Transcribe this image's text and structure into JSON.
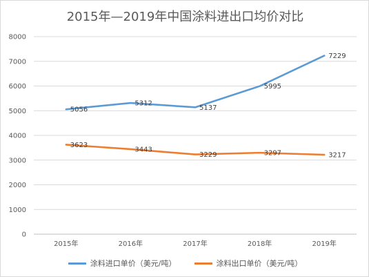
{
  "chart_data": {
    "type": "line",
    "title": "2015年—2019年中国涂料进出口均价对比",
    "categories": [
      "2015年",
      "2016年",
      "2017年",
      "2018年",
      "2019年"
    ],
    "series": [
      {
        "name": "涂料进口单价（美元/吨）",
        "values": [
          5056,
          5312,
          5137,
          5995,
          7229
        ],
        "color": "#5b9bd5"
      },
      {
        "name": "涂料出口单价（美元/吨）",
        "values": [
          3623,
          3443,
          3229,
          3297,
          3217
        ],
        "color": "#ed7d31"
      }
    ],
    "ylim": [
      0,
      8000
    ],
    "yticks": [
      "0",
      "1000",
      "2000",
      "3000",
      "4000",
      "5000",
      "6000",
      "7000",
      "8000"
    ],
    "grid": true,
    "legend_position": "bottom",
    "xlabel": "",
    "ylabel": ""
  }
}
